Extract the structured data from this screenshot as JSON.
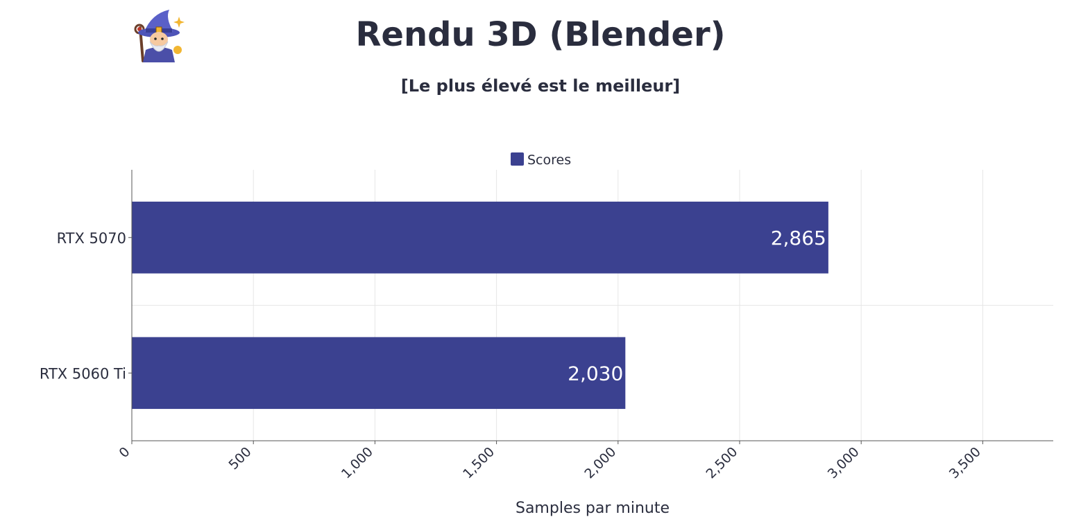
{
  "chart_data": {
    "type": "bar",
    "orientation": "horizontal",
    "title": "Rendu 3D (Blender)",
    "subtitle": "[Le plus élevé est le meilleur]",
    "xlabel": "Samples par minute",
    "ylabel": "",
    "categories": [
      "RTX 5070",
      "RTX 5060 Ti"
    ],
    "series": [
      {
        "name": "Scores",
        "values": [
          2865,
          2030
        ],
        "value_labels": [
          "2,865",
          "2,030"
        ],
        "color": "#3b4190"
      }
    ],
    "xlim": [
      0,
      3790
    ],
    "xticks": [
      0,
      500,
      1000,
      1500,
      2000,
      2500,
      3000,
      3500
    ],
    "xtick_labels": [
      "0",
      "500",
      "1,000",
      "1,500",
      "2,000",
      "2,500",
      "3,000",
      "3,500"
    ],
    "grid": true,
    "legend": "top-center"
  },
  "logo": {
    "icon": "wizard-icon"
  },
  "colors": {
    "bar": "#3b4190",
    "text": "#2a2d3e",
    "grid": "#e6e6e6",
    "axis": "#555555"
  }
}
